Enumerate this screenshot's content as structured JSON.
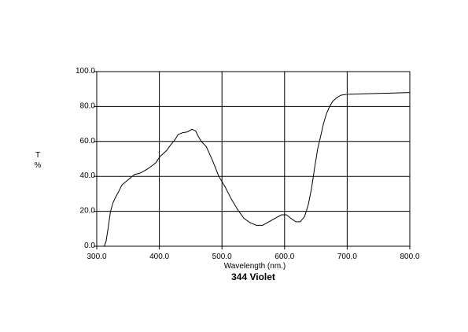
{
  "chart_data": {
    "type": "line",
    "title": "344 Violet",
    "xlabel": "Wavelength (nm.)",
    "ylabel": "T\n%",
    "ylabel_lines": [
      "T",
      "%"
    ],
    "xlim": [
      300,
      800
    ],
    "ylim": [
      0,
      100
    ],
    "x_ticks": [
      300,
      400,
      500,
      600,
      700,
      800
    ],
    "y_ticks": [
      0,
      20,
      40,
      60,
      80,
      100
    ],
    "x_tick_labels": [
      "300.0",
      "400.0",
      "500.0",
      "600.0",
      "700.0",
      "800.0"
    ],
    "y_tick_labels": [
      "0.0",
      "20.0",
      "40.0",
      "60.0",
      "80.0",
      "100.0"
    ],
    "grid": true,
    "series": [
      {
        "color": "#000000",
        "x": [
          300,
          312,
          315,
          318,
          322,
          326,
          330,
          336,
          340,
          350,
          360,
          370,
          380,
          388,
          395,
          400,
          406,
          412,
          418,
          425,
          430,
          437,
          445,
          452,
          458,
          462,
          467,
          475,
          485,
          495,
          505,
          515,
          525,
          535,
          545,
          555,
          565,
          575,
          585,
          595,
          603,
          610,
          618,
          625,
          632,
          638,
          643,
          648,
          653,
          657,
          662,
          667,
          672,
          677,
          683,
          690,
          700,
          720,
          750,
          780,
          800
        ],
        "y": [
          0,
          0,
          3,
          10,
          20,
          25,
          28,
          32,
          35,
          38,
          41,
          42,
          44,
          46,
          48,
          51,
          53,
          55,
          58,
          61,
          64,
          65,
          65.5,
          67,
          66,
          63,
          60,
          57,
          49,
          40,
          34,
          27,
          21,
          16,
          13.5,
          12,
          12,
          14,
          16,
          18,
          18,
          16,
          14,
          14,
          17,
          24,
          33,
          45,
          56,
          62,
          70,
          76,
          80,
          83,
          85,
          86.5,
          87,
          87.2,
          87.5,
          87.8,
          88
        ]
      }
    ]
  }
}
